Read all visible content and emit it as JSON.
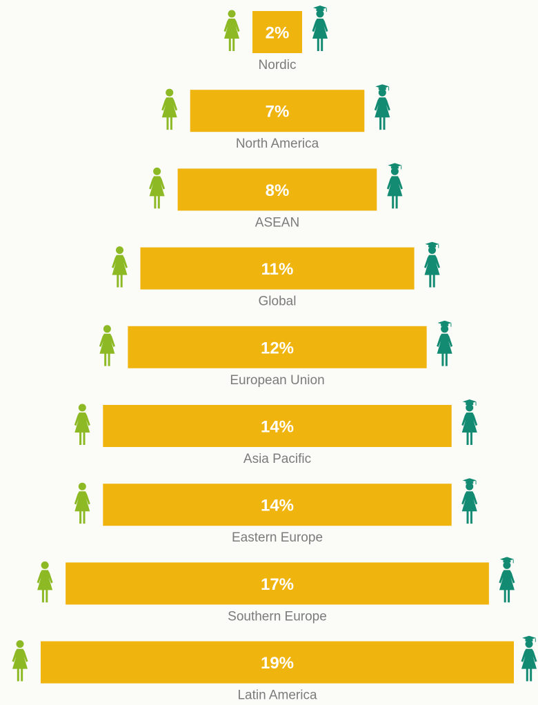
{
  "chart_data": {
    "type": "bar",
    "orientation": "horizontal-centered",
    "categories": [
      "Nordic",
      "North America",
      "ASEAN",
      "Global",
      "European Union",
      "Asia Pacific",
      "Eastern Europe",
      "Southern Europe",
      "Latin America"
    ],
    "values": [
      2,
      7,
      8,
      11,
      12,
      14,
      14,
      17,
      19
    ],
    "value_labels": [
      "2%",
      "7%",
      "8%",
      "11%",
      "12%",
      "14%",
      "14%",
      "17%",
      "19%"
    ],
    "unit": "%",
    "title": "",
    "xlabel": "",
    "ylabel": "",
    "legend": "none",
    "grid": false,
    "icons": {
      "left": "woman-icon",
      "right": "woman-graduate-icon"
    },
    "colors": {
      "bar": "#f0b40e",
      "bar_text": "#ffffff",
      "category_text": "#7b7b7b",
      "woman_icon": "#8cb924",
      "graduate_icon": "#138a72"
    }
  }
}
